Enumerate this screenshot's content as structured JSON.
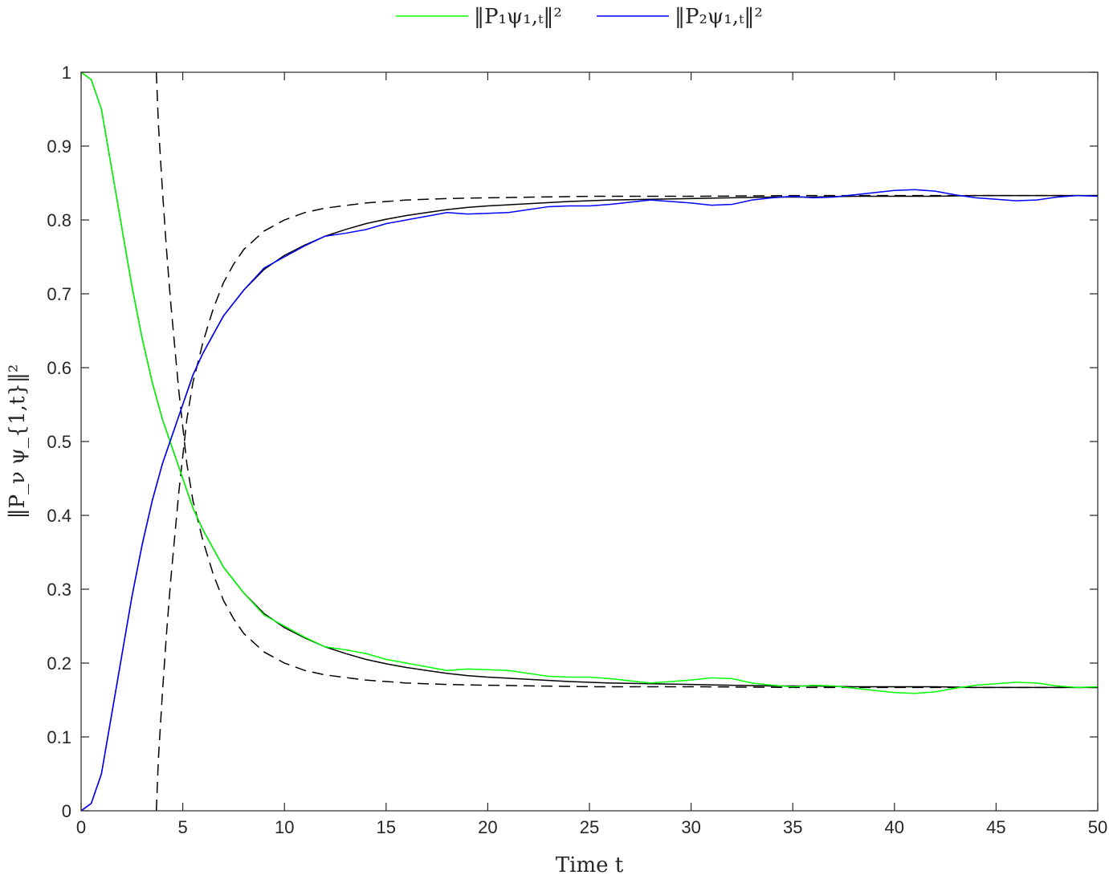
{
  "chart_data": {
    "type": "line",
    "title": "",
    "xlabel": "Time t",
    "ylabel": "‖P_ν ψ_{1,t}‖²",
    "xlim": [
      0,
      50
    ],
    "ylim": [
      0,
      1
    ],
    "xticks": [
      0,
      5,
      10,
      15,
      20,
      25,
      30,
      35,
      40,
      45,
      50
    ],
    "yticks": [
      0,
      0.1,
      0.2,
      0.3,
      0.4,
      0.5,
      0.6,
      0.7,
      0.8,
      0.9,
      1
    ],
    "grid": false,
    "box": true,
    "legend": {
      "placement": "top-center-outside",
      "orientation": "horizontal"
    },
    "series": [
      {
        "name": "‖P₁ψ₁,ₜ‖²",
        "color": "#00ff00",
        "style": "solid",
        "x": [
          0,
          0.5,
          1,
          1.5,
          2,
          2.5,
          3,
          3.5,
          4,
          4.5,
          5,
          5.5,
          6,
          7,
          8,
          9,
          10,
          11,
          12,
          13,
          14,
          15,
          16,
          17,
          18,
          19,
          20,
          21,
          22,
          23,
          24,
          25,
          26,
          27,
          28,
          29,
          30,
          31,
          32,
          33,
          34,
          35,
          36,
          37,
          38,
          39,
          40,
          41,
          42,
          43,
          44,
          45,
          46,
          47,
          48,
          49,
          50
        ],
        "y": [
          1,
          0.99,
          0.95,
          0.87,
          0.79,
          0.71,
          0.64,
          0.58,
          0.53,
          0.49,
          0.45,
          0.41,
          0.38,
          0.33,
          0.295,
          0.265,
          0.25,
          0.235,
          0.222,
          0.218,
          0.213,
          0.205,
          0.2,
          0.195,
          0.19,
          0.192,
          0.191,
          0.19,
          0.186,
          0.182,
          0.181,
          0.181,
          0.179,
          0.176,
          0.173,
          0.175,
          0.177,
          0.18,
          0.179,
          0.173,
          0.17,
          0.168,
          0.17,
          0.169,
          0.166,
          0.163,
          0.16,
          0.159,
          0.161,
          0.166,
          0.17,
          0.172,
          0.174,
          0.173,
          0.169,
          0.167,
          0.168
        ]
      },
      {
        "name": "‖P₂ψ₁,ₜ‖²",
        "color": "#0000ff",
        "style": "solid",
        "x": [
          0,
          0.5,
          1,
          1.5,
          2,
          2.5,
          3,
          3.5,
          4,
          4.5,
          5,
          5.5,
          6,
          7,
          8,
          9,
          10,
          11,
          12,
          13,
          14,
          15,
          16,
          17,
          18,
          19,
          20,
          21,
          22,
          23,
          24,
          25,
          26,
          27,
          28,
          29,
          30,
          31,
          32,
          33,
          34,
          35,
          36,
          37,
          38,
          39,
          40,
          41,
          42,
          43,
          44,
          45,
          46,
          47,
          48,
          49,
          50
        ],
        "y": [
          0,
          0.01,
          0.05,
          0.13,
          0.21,
          0.29,
          0.36,
          0.42,
          0.47,
          0.51,
          0.55,
          0.59,
          0.62,
          0.67,
          0.705,
          0.735,
          0.75,
          0.765,
          0.778,
          0.782,
          0.787,
          0.795,
          0.8,
          0.805,
          0.81,
          0.808,
          0.809,
          0.81,
          0.814,
          0.818,
          0.819,
          0.819,
          0.821,
          0.824,
          0.827,
          0.825,
          0.823,
          0.82,
          0.821,
          0.827,
          0.83,
          0.832,
          0.83,
          0.831,
          0.834,
          0.837,
          0.84,
          0.841,
          0.839,
          0.834,
          0.83,
          0.828,
          0.826,
          0.827,
          0.831,
          0.833,
          0.832
        ]
      },
      {
        "color": "#000000",
        "style": "solid",
        "x": [
          0,
          0.5,
          1,
          1.5,
          2,
          2.5,
          3,
          3.5,
          4,
          4.5,
          5,
          5.5,
          6,
          7,
          8,
          9,
          10,
          11,
          12,
          13,
          14,
          15,
          16,
          17,
          18,
          19,
          20,
          22,
          24,
          26,
          28,
          30,
          32,
          34,
          36,
          38,
          40,
          42,
          44,
          46,
          48,
          50
        ],
        "y": [
          1,
          0.99,
          0.95,
          0.87,
          0.79,
          0.71,
          0.64,
          0.58,
          0.53,
          0.49,
          0.45,
          0.41,
          0.38,
          0.33,
          0.295,
          0.267,
          0.248,
          0.234,
          0.222,
          0.213,
          0.205,
          0.199,
          0.194,
          0.19,
          0.186,
          0.183,
          0.181,
          0.178,
          0.175,
          0.173,
          0.172,
          0.171,
          0.17,
          0.169,
          0.169,
          0.168,
          0.168,
          0.168,
          0.167,
          0.167,
          0.167,
          0.167
        ]
      },
      {
        "color": "#000000",
        "style": "solid",
        "x": [
          0,
          0.5,
          1,
          1.5,
          2,
          2.5,
          3,
          3.5,
          4,
          4.5,
          5,
          5.5,
          6,
          7,
          8,
          9,
          10,
          11,
          12,
          13,
          14,
          15,
          16,
          17,
          18,
          19,
          20,
          22,
          24,
          26,
          28,
          30,
          32,
          34,
          36,
          38,
          40,
          42,
          44,
          46,
          48,
          50
        ],
        "y": [
          0,
          0.01,
          0.05,
          0.13,
          0.21,
          0.29,
          0.36,
          0.42,
          0.47,
          0.51,
          0.55,
          0.59,
          0.62,
          0.67,
          0.705,
          0.733,
          0.752,
          0.766,
          0.778,
          0.787,
          0.795,
          0.801,
          0.806,
          0.81,
          0.814,
          0.817,
          0.819,
          0.822,
          0.825,
          0.827,
          0.828,
          0.829,
          0.83,
          0.831,
          0.831,
          0.832,
          0.832,
          0.832,
          0.833,
          0.833,
          0.833,
          0.833
        ]
      },
      {
        "color": "#000000",
        "style": "dashed",
        "x": [
          3.7,
          3.8,
          4,
          4.2,
          4.4,
          4.6,
          4.8,
          5,
          5.2,
          5.5,
          6,
          6.5,
          7,
          7.5,
          8,
          9,
          10,
          11,
          12,
          14,
          16,
          18,
          20,
          25,
          30,
          35,
          40,
          45,
          50
        ],
        "y": [
          1,
          0.93,
          0.84,
          0.76,
          0.69,
          0.63,
          0.57,
          0.52,
          0.47,
          0.42,
          0.365,
          0.32,
          0.285,
          0.26,
          0.24,
          0.215,
          0.2,
          0.19,
          0.184,
          0.177,
          0.173,
          0.171,
          0.17,
          0.168,
          0.168,
          0.167,
          0.167,
          0.167,
          0.167
        ]
      },
      {
        "color": "#000000",
        "style": "dashed",
        "x": [
          3.7,
          3.8,
          4,
          4.2,
          4.4,
          4.6,
          4.8,
          5,
          5.2,
          5.5,
          6,
          6.5,
          7,
          7.5,
          8,
          9,
          10,
          11,
          12,
          14,
          16,
          18,
          20,
          25,
          30,
          35,
          40,
          45,
          50
        ],
        "y": [
          0,
          0.07,
          0.16,
          0.24,
          0.31,
          0.37,
          0.43,
          0.48,
          0.53,
          0.58,
          0.635,
          0.68,
          0.715,
          0.74,
          0.76,
          0.785,
          0.8,
          0.81,
          0.816,
          0.823,
          0.827,
          0.829,
          0.83,
          0.832,
          0.832,
          0.833,
          0.833,
          0.833,
          0.833
        ]
      }
    ]
  }
}
